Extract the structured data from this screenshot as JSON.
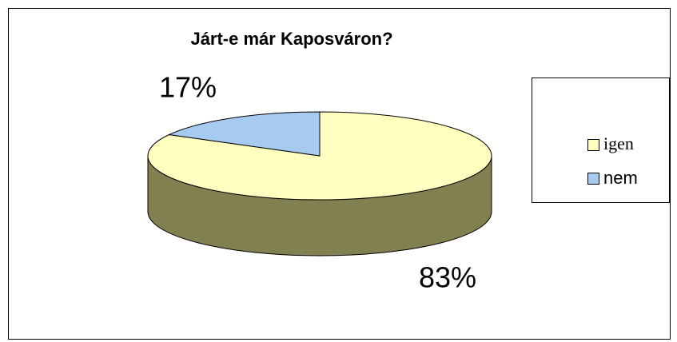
{
  "chart_data": {
    "type": "pie",
    "title": "Járt-e már Kaposváron?",
    "categories": [
      "igen",
      "nem"
    ],
    "values": [
      83,
      17
    ],
    "value_labels": [
      "83%",
      "17%"
    ],
    "colors": [
      "#ffffc0",
      "#a6caf0"
    ],
    "side_color": "#808050",
    "legend": "right"
  }
}
